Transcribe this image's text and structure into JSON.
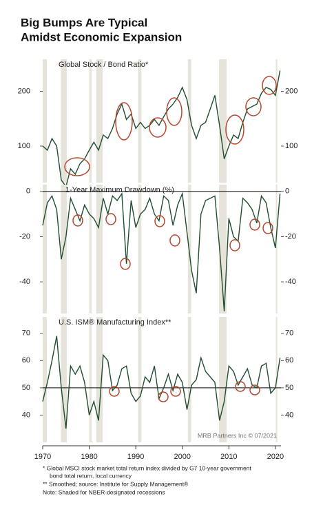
{
  "title": [
    "Big Bumps Are Typical",
    "Amidst Economic Expansion"
  ],
  "source": "MRB Partners Inc © 07/2021",
  "notes": [
    "*  Global MSCI stock market total return index divided by G7 10-year government",
    "bond total return, local currency",
    "** Smoothed; source: Institute for Supply Management®",
    "Note: Shaded for NBER-designated recessions"
  ],
  "recessions": [
    [
      1970.0,
      1970.9
    ],
    [
      1973.9,
      1975.2
    ],
    [
      1980.0,
      1980.5
    ],
    [
      1981.5,
      1982.9
    ],
    [
      1990.5,
      1991.2
    ],
    [
      2001.2,
      2001.9
    ],
    [
      2007.9,
      2009.5
    ],
    [
      2020.1,
      2020.4
    ]
  ],
  "chart_data": [
    {
      "type": "line",
      "title": "Global Stock / Bond Ratio*",
      "log_scale": true,
      "color": "#1f4d2e",
      "xlim": [
        1970,
        2021.2
      ],
      "ylim": [
        63,
        300
      ],
      "yticks": [
        100,
        200
      ],
      "x": [
        1970,
        1971,
        1972,
        1973,
        1974,
        1975,
        1976,
        1977,
        1978,
        1979,
        1980,
        1981,
        1982,
        1983,
        1984,
        1985,
        1986,
        1987,
        1988,
        1989,
        1990,
        1991,
        1992,
        1993,
        1994,
        1995,
        1996,
        1997,
        1998,
        1999,
        2000,
        2001,
        2002,
        2003,
        2004,
        2005,
        2006,
        2007,
        2008,
        2009,
        2010,
        2011,
        2012,
        2013,
        2014,
        2015,
        2016,
        2017,
        2018,
        2019,
        2020,
        2021
      ],
      "values": [
        100,
        95,
        110,
        100,
        65,
        60,
        75,
        70,
        80,
        85,
        95,
        105,
        95,
        115,
        110,
        125,
        150,
        170,
        140,
        150,
        125,
        135,
        125,
        130,
        140,
        130,
        145,
        160,
        170,
        185,
        210,
        180,
        130,
        110,
        130,
        135,
        160,
        190,
        130,
        85,
        100,
        115,
        110,
        135,
        160,
        165,
        170,
        195,
        210,
        205,
        190,
        260
      ]
    },
    {
      "type": "line",
      "title": "1-Year Maximum Drawdown (%)",
      "color": "#1f4d2e",
      "xlim": [
        1970,
        2021.2
      ],
      "ylim": [
        -54,
        3
      ],
      "yticks": [
        0,
        -20,
        -40
      ],
      "hline": 0,
      "x": [
        1970,
        1971,
        1972,
        1973,
        1974,
        1975,
        1976,
        1977,
        1978,
        1979,
        1980,
        1981,
        1982,
        1983,
        1984,
        1985,
        1986,
        1987,
        1988,
        1989,
        1990,
        1991,
        1992,
        1993,
        1994,
        1995,
        1996,
        1997,
        1998,
        1999,
        2000,
        2001,
        2002,
        2003,
        2004,
        2005,
        2006,
        2007,
        2008,
        2009,
        2010,
        2011,
        2012,
        2013,
        2014,
        2015,
        2016,
        2017,
        2018,
        2019,
        2020,
        2021
      ],
      "values": [
        -15,
        -5,
        -2,
        -8,
        -30,
        -20,
        -3,
        -8,
        -13,
        -6,
        -10,
        -12,
        -16,
        -3,
        -10,
        -2,
        -4,
        -1,
        -32,
        -4,
        -16,
        -10,
        -8,
        -3,
        -10,
        -13,
        -2,
        -4,
        -15,
        -6,
        -1,
        -18,
        -35,
        -45,
        -10,
        -4,
        -3,
        -2,
        -25,
        -53,
        -12,
        -20,
        -22,
        -3,
        -5,
        -8,
        -14,
        -2,
        -5,
        -16,
        -25,
        -1
      ]
    },
    {
      "type": "line",
      "title": "U.S. ISM® Manufacturing Index**",
      "color": "#1f4d2e",
      "xlim": [
        1970,
        2021.2
      ],
      "ylim": [
        30,
        76
      ],
      "yticks": [
        70,
        60,
        50,
        40
      ],
      "hline": 50,
      "xticks": [
        1970,
        1980,
        1990,
        2000,
        2010,
        2020
      ],
      "x": [
        1970,
        1971,
        1972,
        1973,
        1974,
        1975,
        1976,
        1977,
        1978,
        1979,
        1980,
        1981,
        1982,
        1983,
        1984,
        1985,
        1986,
        1987,
        1988,
        1989,
        1990,
        1991,
        1992,
        1993,
        1994,
        1995,
        1996,
        1997,
        1998,
        1999,
        2000,
        2001,
        2002,
        2003,
        2004,
        2005,
        2006,
        2007,
        2008,
        2009,
        2010,
        2011,
        2012,
        2013,
        2014,
        2015,
        2016,
        2017,
        2018,
        2019,
        2020,
        2021
      ],
      "values": [
        45,
        52,
        60,
        69,
        50,
        35,
        58,
        55,
        58,
        52,
        40,
        45,
        38,
        62,
        60,
        49,
        51,
        57,
        58,
        48,
        45,
        47,
        54,
        52,
        58,
        46,
        50,
        55,
        49,
        55,
        52,
        42,
        51,
        53,
        61,
        56,
        54,
        52,
        38,
        45,
        58,
        56,
        51,
        54,
        57,
        51,
        50,
        58,
        59,
        48,
        50,
        61
      ]
    }
  ]
}
